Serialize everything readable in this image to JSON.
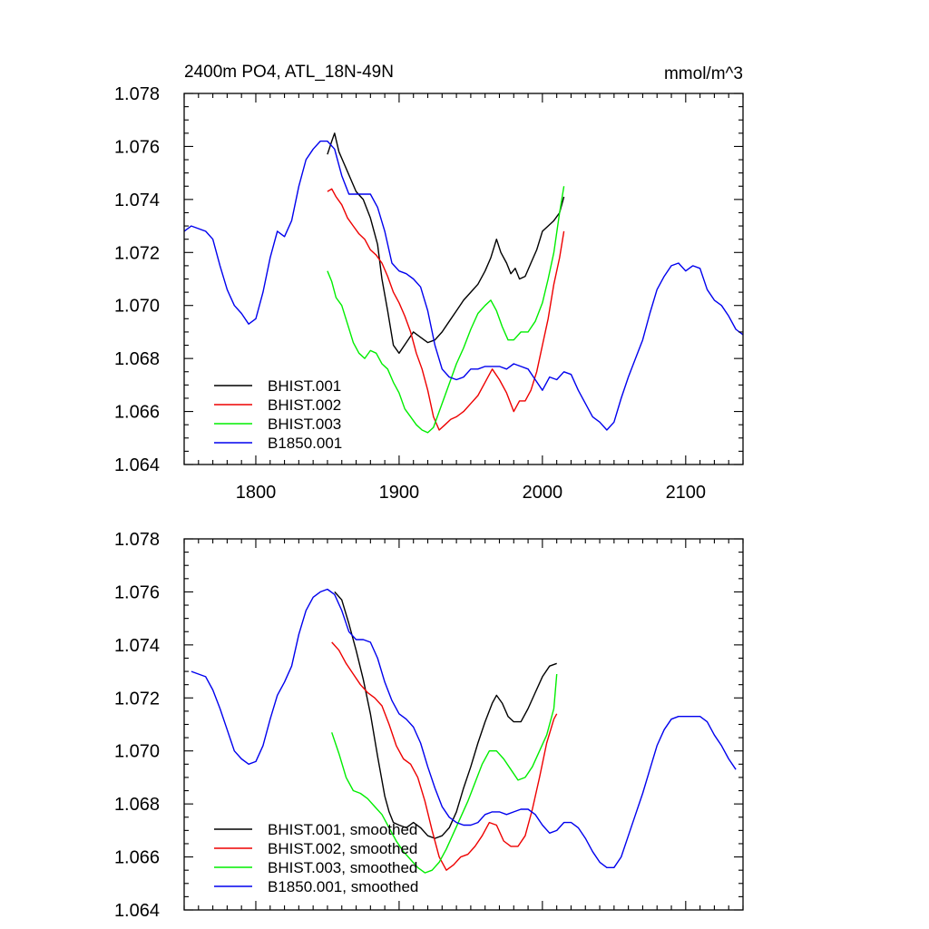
{
  "colors": {
    "BHIST.001": "#000000",
    "BHIST.002": "#ee0000",
    "BHIST.003": "#00ee00",
    "B1850.001": "#0000ee"
  },
  "chart_data": [
    {
      "type": "line",
      "title": "2400m PO4, ATL_18N-49N",
      "units": "mmol/m^3",
      "xlim": [
        1750,
        2140
      ],
      "ylim": [
        1.064,
        1.078
      ],
      "xticks": [
        1800,
        1900,
        2000,
        2100
      ],
      "xtick_labels": [
        "1800",
        "1900",
        "2000",
        "2100"
      ],
      "yticks": [
        1.064,
        1.066,
        1.068,
        1.07,
        1.072,
        1.074,
        1.076,
        1.078
      ],
      "ytick_labels": [
        "1.064",
        "1.066",
        "1.068",
        "1.070",
        "1.072",
        "1.074",
        "1.076",
        "1.078"
      ],
      "legend_position": "bottom-left",
      "series": [
        {
          "name": "BHIST.001",
          "color_key": "BHIST.001",
          "x": [
            1850,
            1853,
            1855,
            1858,
            1862,
            1866,
            1870,
            1875,
            1880,
            1885,
            1888,
            1892,
            1896,
            1900,
            1905,
            1910,
            1915,
            1920,
            1925,
            1930,
            1935,
            1940,
            1945,
            1950,
            1955,
            1960,
            1964,
            1968,
            1971,
            1975,
            1978,
            1981,
            1984,
            1988,
            1992,
            1996,
            2000,
            2004,
            2008,
            2012,
            2015
          ],
          "y": [
            1.0757,
            1.0762,
            1.0765,
            1.0758,
            1.0753,
            1.0748,
            1.0743,
            1.074,
            1.0733,
            1.0723,
            1.071,
            1.0698,
            1.0685,
            1.0682,
            1.0686,
            1.069,
            1.0688,
            1.0686,
            1.0687,
            1.069,
            1.0694,
            1.0698,
            1.0702,
            1.0705,
            1.0708,
            1.0713,
            1.0718,
            1.0725,
            1.072,
            1.0716,
            1.0712,
            1.0714,
            1.071,
            1.0711,
            1.0716,
            1.0721,
            1.0728,
            1.073,
            1.0732,
            1.0735,
            1.0741
          ]
        },
        {
          "name": "BHIST.002",
          "color_key": "BHIST.002",
          "x": [
            1850,
            1853,
            1856,
            1860,
            1864,
            1868,
            1872,
            1876,
            1880,
            1884,
            1888,
            1892,
            1896,
            1900,
            1904,
            1908,
            1912,
            1916,
            1920,
            1924,
            1928,
            1932,
            1936,
            1940,
            1945,
            1950,
            1955,
            1960,
            1965,
            1970,
            1975,
            1980,
            1984,
            1988,
            1992,
            1996,
            2000,
            2004,
            2008,
            2012,
            2015
          ],
          "y": [
            1.0743,
            1.0744,
            1.0741,
            1.0738,
            1.0733,
            1.073,
            1.0727,
            1.0725,
            1.0721,
            1.0719,
            1.0716,
            1.0711,
            1.0705,
            1.0701,
            1.0696,
            1.069,
            1.0682,
            1.0676,
            1.0668,
            1.0658,
            1.0653,
            1.0655,
            1.0657,
            1.0658,
            1.066,
            1.0663,
            1.0666,
            1.0671,
            1.0676,
            1.0672,
            1.0667,
            1.066,
            1.0664,
            1.0664,
            1.0668,
            1.0675,
            1.0685,
            1.0695,
            1.0708,
            1.0718,
            1.0728
          ]
        },
        {
          "name": "BHIST.003",
          "color_key": "BHIST.003",
          "x": [
            1850,
            1853,
            1856,
            1860,
            1864,
            1868,
            1872,
            1876,
            1880,
            1884,
            1888,
            1892,
            1896,
            1900,
            1904,
            1908,
            1912,
            1916,
            1920,
            1924,
            1928,
            1932,
            1936,
            1940,
            1945,
            1950,
            1955,
            1960,
            1964,
            1968,
            1972,
            1976,
            1980,
            1985,
            1990,
            1995,
            2000,
            2004,
            2008,
            2012,
            2015
          ],
          "y": [
            1.0713,
            1.0709,
            1.0703,
            1.07,
            1.0693,
            1.0686,
            1.0682,
            1.068,
            1.0683,
            1.0682,
            1.0678,
            1.0676,
            1.0671,
            1.0667,
            1.0661,
            1.0658,
            1.0655,
            1.0653,
            1.0652,
            1.0654,
            1.066,
            1.0666,
            1.0672,
            1.0678,
            1.0684,
            1.0691,
            1.0697,
            1.07,
            1.0702,
            1.0698,
            1.0692,
            1.0687,
            1.0687,
            1.069,
            1.069,
            1.0694,
            1.0701,
            1.071,
            1.072,
            1.0735,
            1.0745
          ]
        },
        {
          "name": "B1850.001",
          "color_key": "B1850.001",
          "x": [
            1750,
            1755,
            1760,
            1765,
            1770,
            1775,
            1780,
            1785,
            1790,
            1795,
            1800,
            1805,
            1810,
            1815,
            1820,
            1825,
            1830,
            1835,
            1840,
            1845,
            1850,
            1855,
            1860,
            1865,
            1870,
            1875,
            1880,
            1885,
            1890,
            1895,
            1900,
            1905,
            1910,
            1915,
            1920,
            1925,
            1930,
            1935,
            1940,
            1945,
            1950,
            1955,
            1960,
            1965,
            1970,
            1975,
            1980,
            1985,
            1990,
            1995,
            2000,
            2005,
            2010,
            2015,
            2020,
            2025,
            2030,
            2035,
            2040,
            2045,
            2050,
            2055,
            2060,
            2065,
            2070,
            2075,
            2080,
            2085,
            2090,
            2095,
            2100,
            2105,
            2110,
            2115,
            2120,
            2125,
            2130,
            2135,
            2140
          ],
          "y": [
            1.0728,
            1.073,
            1.0729,
            1.0728,
            1.0725,
            1.0715,
            1.0706,
            1.07,
            1.0697,
            1.0693,
            1.0695,
            1.0705,
            1.0718,
            1.0728,
            1.0726,
            1.0732,
            1.0745,
            1.0755,
            1.0759,
            1.0762,
            1.0762,
            1.0759,
            1.0749,
            1.0742,
            1.0742,
            1.0742,
            1.0742,
            1.0737,
            1.0728,
            1.0716,
            1.0713,
            1.0712,
            1.071,
            1.0707,
            1.0698,
            1.0685,
            1.0676,
            1.0673,
            1.0672,
            1.0673,
            1.0676,
            1.0676,
            1.0677,
            1.0677,
            1.0677,
            1.0676,
            1.0678,
            1.0677,
            1.0676,
            1.0672,
            1.0668,
            1.0673,
            1.0672,
            1.0675,
            1.0674,
            1.0668,
            1.0663,
            1.0658,
            1.0656,
            1.0653,
            1.0656,
            1.0665,
            1.0673,
            1.068,
            1.0687,
            1.0697,
            1.0706,
            1.0711,
            1.0715,
            1.0716,
            1.0713,
            1.0715,
            1.0714,
            1.0706,
            1.0702,
            1.07,
            1.0696,
            1.0691,
            1.0689
          ]
        }
      ]
    },
    {
      "type": "line",
      "title": "",
      "units": "",
      "xlim": [
        1750,
        2140
      ],
      "ylim": [
        1.064,
        1.078
      ],
      "xticks": [
        1800,
        1900,
        2000,
        2100
      ],
      "xtick_labels": [],
      "yticks": [
        1.064,
        1.066,
        1.068,
        1.07,
        1.072,
        1.074,
        1.076,
        1.078
      ],
      "ytick_labels": [
        "1.064",
        "1.066",
        "1.068",
        "1.070",
        "1.072",
        "1.074",
        "1.076",
        "1.078"
      ],
      "legend_position": "bottom-left",
      "series": [
        {
          "name": "BHIST.001, smoothed",
          "color_key": "BHIST.001",
          "x": [
            1855,
            1860,
            1865,
            1870,
            1875,
            1880,
            1885,
            1890,
            1893,
            1896,
            1900,
            1905,
            1910,
            1915,
            1920,
            1925,
            1930,
            1935,
            1940,
            1945,
            1950,
            1955,
            1960,
            1965,
            1968,
            1972,
            1976,
            1980,
            1985,
            1990,
            1995,
            2000,
            2005,
            2010
          ],
          "y": [
            1.076,
            1.0757,
            1.0748,
            1.0738,
            1.0727,
            1.0714,
            1.0698,
            1.0683,
            1.0677,
            1.0673,
            1.0672,
            1.0671,
            1.0673,
            1.0671,
            1.0668,
            1.0667,
            1.0668,
            1.0671,
            1.0677,
            1.0686,
            1.0694,
            1.0703,
            1.0711,
            1.0718,
            1.0721,
            1.0718,
            1.0713,
            1.0711,
            1.0711,
            1.0716,
            1.0722,
            1.0728,
            1.0732,
            1.0733
          ]
        },
        {
          "name": "BHIST.002, smoothed",
          "color_key": "BHIST.002",
          "x": [
            1853,
            1858,
            1863,
            1868,
            1873,
            1878,
            1883,
            1888,
            1893,
            1898,
            1903,
            1908,
            1913,
            1918,
            1923,
            1928,
            1933,
            1938,
            1943,
            1948,
            1953,
            1958,
            1963,
            1968,
            1973,
            1978,
            1983,
            1988,
            1993,
            1998,
            2003,
            2008,
            2010
          ],
          "y": [
            1.0741,
            1.0738,
            1.0733,
            1.0729,
            1.0725,
            1.0722,
            1.072,
            1.0717,
            1.071,
            1.0702,
            1.0697,
            1.0695,
            1.069,
            1.0681,
            1.067,
            1.066,
            1.0655,
            1.0657,
            1.066,
            1.0661,
            1.0664,
            1.0668,
            1.0673,
            1.0672,
            1.0666,
            1.0664,
            1.0664,
            1.0668,
            1.0678,
            1.069,
            1.0703,
            1.0712,
            1.0714
          ]
        },
        {
          "name": "BHIST.003, smoothed",
          "color_key": "BHIST.003",
          "x": [
            1853,
            1858,
            1863,
            1868,
            1873,
            1878,
            1883,
            1888,
            1893,
            1898,
            1903,
            1908,
            1913,
            1918,
            1923,
            1928,
            1933,
            1938,
            1943,
            1948,
            1953,
            1958,
            1963,
            1968,
            1973,
            1978,
            1983,
            1988,
            1993,
            1998,
            2003,
            2008,
            2010
          ],
          "y": [
            1.0707,
            1.0699,
            1.069,
            1.0685,
            1.0684,
            1.0682,
            1.0679,
            1.0676,
            1.0671,
            1.0666,
            1.0662,
            1.0659,
            1.0656,
            1.0654,
            1.0655,
            1.0658,
            1.0663,
            1.0669,
            1.0675,
            1.0681,
            1.0688,
            1.0695,
            1.07,
            1.07,
            1.0697,
            1.0693,
            1.0689,
            1.069,
            1.0694,
            1.07,
            1.0706,
            1.0716,
            1.0729
          ]
        },
        {
          "name": "B1850.001, smoothed",
          "color_key": "B1850.001",
          "x": [
            1755,
            1760,
            1765,
            1770,
            1775,
            1780,
            1785,
            1790,
            1795,
            1800,
            1805,
            1810,
            1815,
            1820,
            1825,
            1830,
            1835,
            1840,
            1845,
            1850,
            1855,
            1860,
            1865,
            1870,
            1875,
            1880,
            1885,
            1890,
            1895,
            1900,
            1905,
            1910,
            1915,
            1920,
            1925,
            1930,
            1935,
            1940,
            1945,
            1950,
            1955,
            1960,
            1965,
            1970,
            1975,
            1980,
            1985,
            1990,
            1995,
            2000,
            2005,
            2010,
            2015,
            2020,
            2025,
            2030,
            2035,
            2040,
            2045,
            2050,
            2055,
            2060,
            2065,
            2070,
            2075,
            2080,
            2085,
            2090,
            2095,
            2100,
            2105,
            2110,
            2115,
            2120,
            2125,
            2130,
            2135
          ],
          "y": [
            1.073,
            1.0729,
            1.0728,
            1.0723,
            1.0716,
            1.0708,
            1.07,
            1.0697,
            1.0695,
            1.0696,
            1.0702,
            1.0712,
            1.0721,
            1.0726,
            1.0732,
            1.0744,
            1.0753,
            1.0758,
            1.076,
            1.0761,
            1.0759,
            1.0753,
            1.0745,
            1.0742,
            1.0742,
            1.0741,
            1.0735,
            1.0726,
            1.0719,
            1.0714,
            1.0712,
            1.0709,
            1.0703,
            1.0694,
            1.0686,
            1.0679,
            1.0675,
            1.0673,
            1.0672,
            1.0672,
            1.0673,
            1.0676,
            1.0677,
            1.0677,
            1.0676,
            1.0677,
            1.0678,
            1.0678,
            1.0676,
            1.0672,
            1.0669,
            1.067,
            1.0673,
            1.0673,
            1.0671,
            1.0667,
            1.0662,
            1.0658,
            1.0656,
            1.0656,
            1.066,
            1.0668,
            1.0676,
            1.0684,
            1.0693,
            1.0702,
            1.0708,
            1.0712,
            1.0713,
            1.0713,
            1.0713,
            1.0713,
            1.0711,
            1.0706,
            1.0702,
            1.0697,
            1.0693
          ]
        }
      ]
    }
  ]
}
